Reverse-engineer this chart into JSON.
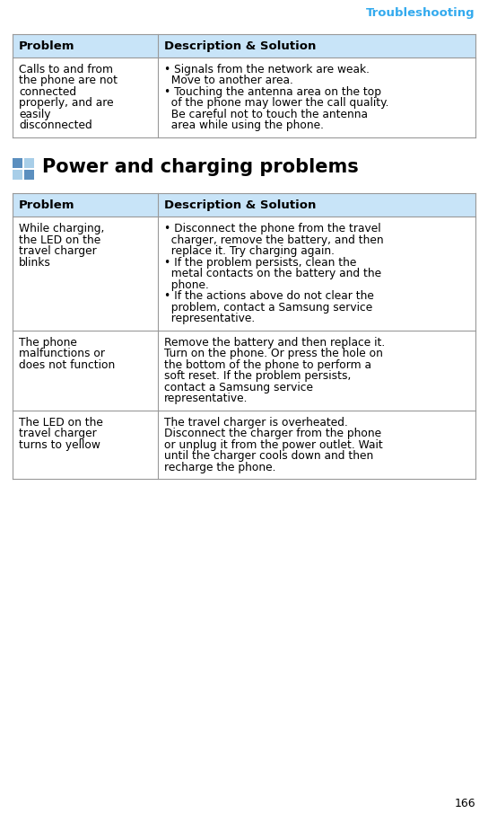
{
  "page_number": "166",
  "header_text": "Troubleshooting",
  "header_color": "#33AAEE",
  "section_title": "Power and charging problems",
  "section_title_fontsize": 15,
  "header_bg": "#C8E4F8",
  "col1_header": "Problem",
  "col2_header": "Description & Solution",
  "table_line_color": "#999999",
  "background_color": "#FFFFFF",
  "table1_rows": [
    {
      "problem": "Calls to and from\nthe phone are not\nconnected\nproperly, and are\neasily\ndisconnected",
      "solution_parts": [
        [
          "• ",
          "Signals from the network are weak.\n  Move to another area."
        ],
        [
          "• ",
          "Touching the antenna area on the top\n  of the phone may lower the call quality.\n  Be careful not to touch the antenna\n  area while using the phone."
        ]
      ]
    }
  ],
  "table2_rows": [
    {
      "problem": "While charging,\nthe LED on the\ntravel charger\nblinks",
      "solution_parts": [
        [
          "• ",
          "Disconnect the phone from the travel\n  charger, remove the battery, and then\n  replace it. Try charging again."
        ],
        [
          "• ",
          "If the problem persists, clean the\n  metal contacts on the battery and the\n  phone."
        ],
        [
          "• ",
          "If the actions above do not clear the\n  problem, contact a Samsung service\n  representative."
        ]
      ]
    },
    {
      "problem": "The phone\nmalfunctions or\ndoes not function",
      "solution_parts": [
        [
          "",
          "Remove the battery and then replace it.\nTurn on the phone. Or press the hole on\nthe bottom of the phone to perform a\nsoft reset. If the problem persists,\ncontact a Samsung service\nrepresentative."
        ]
      ]
    },
    {
      "problem": "The LED on the\ntravel charger\nturns to yellow",
      "solution_parts": [
        [
          "",
          "The travel charger is overheated.\nDisconnect the charger from the phone\nor unplug it from the power outlet. Wait\nuntil the charger cools down and then\nrecharge the phone."
        ]
      ]
    }
  ],
  "icon_colors": [
    "#5B8FBF",
    "#A8CEE8",
    "#A8CEE8",
    "#5B8FBF"
  ],
  "body_fontsize": 8.8,
  "header_fontsize": 9.5,
  "page_number_fontsize": 9
}
